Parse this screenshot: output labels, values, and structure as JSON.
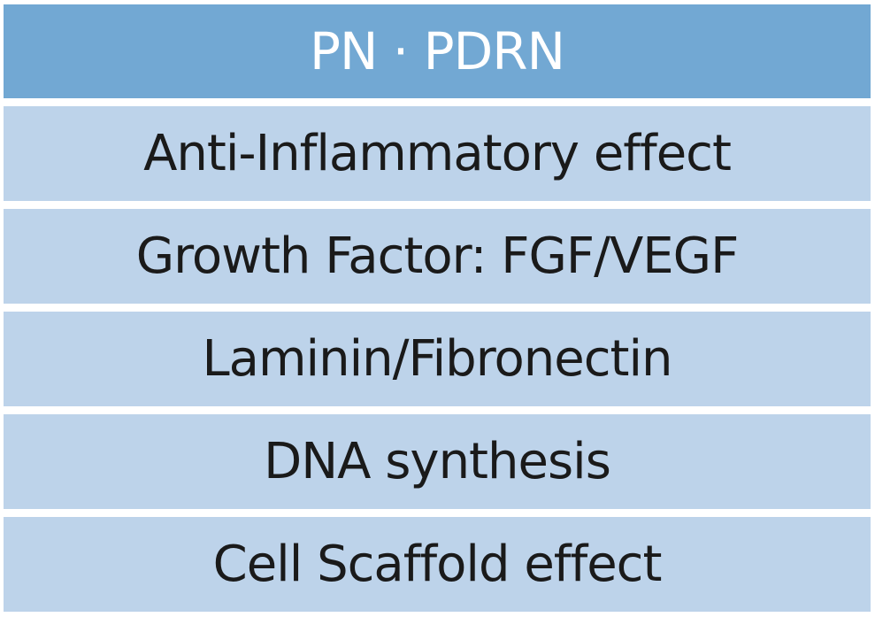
{
  "header": {
    "title": "PN · PDRN"
  },
  "items": [
    "Anti-Inflammatory effect",
    "Growth Factor: FGF/VEGF",
    "Laminin/Fibronectin",
    "DNA synthesis",
    "Cell Scaffold effect"
  ]
}
